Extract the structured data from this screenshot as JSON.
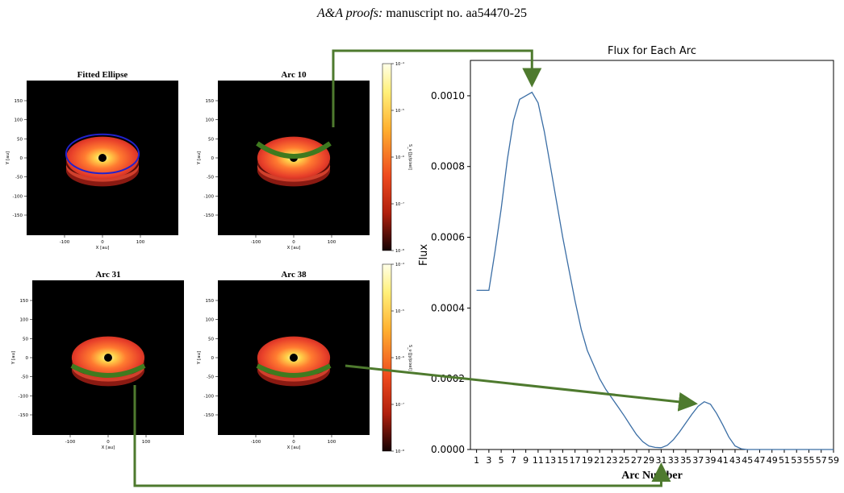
{
  "header": {
    "journal": "A&A proofs:",
    "manuscript": "manuscript no. aa54470-25"
  },
  "panels": [
    {
      "title": "Fitted Ellipse",
      "xlabel": "X [au]",
      "ylabel": "Y [au]",
      "xticks": [
        "-100",
        "0",
        "100"
      ],
      "yticks": [
        "150",
        "100",
        "50",
        "0",
        "-50",
        "-100",
        "-150"
      ]
    },
    {
      "title": "Arc 10",
      "xlabel": "X [au]",
      "ylabel": "Y [au]",
      "xticks": [
        "-100",
        "0",
        "100"
      ],
      "yticks": [
        "150",
        "100",
        "50",
        "0",
        "-50",
        "-100",
        "-150"
      ]
    },
    {
      "title": "Arc 31",
      "xlabel": "X [au]",
      "ylabel": "Y [au]",
      "xticks": [
        "-100",
        "0",
        "100"
      ],
      "yticks": [
        "150",
        "100",
        "50",
        "0",
        "-50",
        "-100",
        "-150"
      ]
    },
    {
      "title": "Arc 38",
      "xlabel": "X [au]",
      "ylabel": "Y [au]",
      "xticks": [
        "-100",
        "0",
        "100"
      ],
      "yticks": [
        "150",
        "100",
        "50",
        "0",
        "-50",
        "-100",
        "-150"
      ]
    }
  ],
  "colorbars": [
    {
      "label": "S_ν [Jy/pixel]",
      "ticks": [
        "10⁻⁴",
        "10⁻⁵",
        "10⁻⁶",
        "10⁻⁷",
        "10⁻⁸"
      ]
    },
    {
      "label": "S_ν [Jy/pixel]",
      "ticks": [
        "10⁻⁴",
        "10⁻⁵",
        "10⁻⁶",
        "10⁻⁷",
        "10⁻⁸"
      ]
    }
  ],
  "colors": {
    "arrow": "#4e7a2e",
    "line": "#3b6ea5",
    "ellipse": "#2222cc",
    "arc": "#3f7a1f"
  },
  "chart_data": {
    "type": "line",
    "title": "Flux for Each Arc",
    "xlabel": "Arc Number",
    "ylabel": "Flux",
    "ylim": [
      0,
      0.0011
    ],
    "xlim": [
      0,
      59
    ],
    "xticks": [
      1,
      3,
      5,
      7,
      9,
      11,
      13,
      15,
      17,
      19,
      21,
      23,
      25,
      27,
      29,
      31,
      33,
      35,
      37,
      39,
      41,
      43,
      45,
      47,
      49,
      51,
      53,
      55,
      57,
      59
    ],
    "yticks": [
      {
        "v": 0,
        "label": "0.0000"
      },
      {
        "v": 0.0002,
        "label": "0.0002"
      },
      {
        "v": 0.0004,
        "label": "0.0004"
      },
      {
        "v": 0.0006,
        "label": "0.0006"
      },
      {
        "v": 0.0008,
        "label": "0.0008"
      },
      {
        "v": 0.001,
        "label": "0.0010"
      }
    ],
    "series": [
      {
        "x": [
          1,
          2,
          3,
          4,
          5,
          6,
          7,
          8,
          9,
          10,
          11,
          12,
          13,
          14,
          15,
          16,
          17,
          18,
          19,
          20,
          21,
          22,
          23,
          24,
          25,
          26,
          27,
          28,
          29,
          30,
          31,
          32,
          33,
          34,
          35,
          36,
          37,
          38,
          39,
          40,
          41,
          42,
          43,
          44,
          45,
          46,
          47,
          48,
          49,
          50,
          51,
          52,
          53,
          54,
          55,
          56,
          57,
          58,
          59
        ],
        "values": [
          0.00045,
          0.00045,
          0.00045,
          0.00056,
          0.00068,
          0.00082,
          0.00093,
          0.00099,
          0.001,
          0.00101,
          0.00098,
          0.0009,
          0.0008,
          0.0007,
          0.0006,
          0.00051,
          0.00042,
          0.00034,
          0.00028,
          0.00024,
          0.0002,
          0.00017,
          0.000145,
          0.00012,
          9.5e-05,
          6.8e-05,
          4.2e-05,
          2.2e-05,
          1e-05,
          6e-06,
          5e-06,
          1.2e-05,
          2.8e-05,
          5e-05,
          7.5e-05,
          0.0001,
          0.000122,
          0.000135,
          0.000128,
          0.000102,
          7e-05,
          3.5e-05,
          1e-05,
          2e-06,
          0,
          0,
          0,
          0,
          0,
          0,
          0,
          0,
          0,
          0,
          0,
          0,
          0,
          0,
          0
        ]
      }
    ]
  }
}
